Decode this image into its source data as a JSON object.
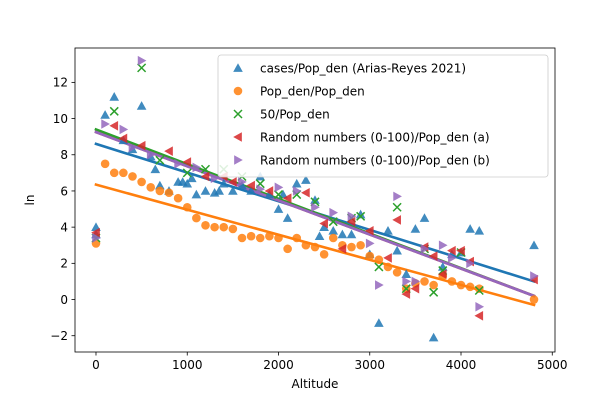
{
  "chart_data": {
    "type": "scatter",
    "title": "",
    "xlabel": "Altitude",
    "ylabel": "ln",
    "xlim": [
      -230,
      5030
    ],
    "ylim": [
      -2.9,
      13.9
    ],
    "xticks": [
      0,
      1000,
      2000,
      3000,
      4000,
      5000
    ],
    "yticks": [
      -2,
      0,
      2,
      4,
      6,
      8,
      10,
      12
    ],
    "grid": false,
    "legend_position": "top-right",
    "series": [
      {
        "name": "cases/Pop_den (Arias-Reyes 2021)",
        "marker": "triangle-up",
        "color": "#1f77b4",
        "fit": [
          [
            0,
            8.6
          ],
          [
            4800,
            1.0
          ]
        ],
        "points": [
          [
            0,
            4.0
          ],
          [
            0,
            3.6
          ],
          [
            100,
            10.2
          ],
          [
            200,
            11.2
          ],
          [
            300,
            8.8
          ],
          [
            400,
            8.3
          ],
          [
            500,
            10.7
          ],
          [
            600,
            7.9
          ],
          [
            650,
            7.2
          ],
          [
            700,
            6.3
          ],
          [
            800,
            6.0
          ],
          [
            900,
            6.5
          ],
          [
            950,
            6.5
          ],
          [
            1000,
            6.4
          ],
          [
            1050,
            6.7
          ],
          [
            1100,
            5.8
          ],
          [
            1200,
            6.0
          ],
          [
            1300,
            5.9
          ],
          [
            1350,
            6.0
          ],
          [
            1400,
            6.4
          ],
          [
            1500,
            6.0
          ],
          [
            1600,
            6.3
          ],
          [
            1700,
            6.0
          ],
          [
            1800,
            6.8
          ],
          [
            1900,
            5.8
          ],
          [
            2000,
            5.0
          ],
          [
            2050,
            5.8
          ],
          [
            2100,
            4.5
          ],
          [
            2200,
            6.4
          ],
          [
            2300,
            6.6
          ],
          [
            2400,
            5.5
          ],
          [
            2450,
            3.5
          ],
          [
            2500,
            4.0
          ],
          [
            2600,
            3.8
          ],
          [
            2700,
            3.6
          ],
          [
            2800,
            3.6
          ],
          [
            2900,
            4.7
          ],
          [
            3000,
            2.5
          ],
          [
            3100,
            -1.3
          ],
          [
            3200,
            3.8
          ],
          [
            3300,
            2.7
          ],
          [
            3400,
            1.4
          ],
          [
            3500,
            3.9
          ],
          [
            3600,
            4.5
          ],
          [
            3700,
            -2.1
          ],
          [
            3800,
            1.8
          ],
          [
            3900,
            2.5
          ],
          [
            4000,
            2.6
          ],
          [
            4100,
            3.9
          ],
          [
            4200,
            3.8
          ],
          [
            4800,
            3.0
          ]
        ]
      },
      {
        "name": "Pop_den/Pop_den",
        "marker": "circle",
        "color": "#ff7f0e",
        "fit": [
          [
            0,
            6.35
          ],
          [
            4800,
            -0.3
          ]
        ],
        "points": [
          [
            0,
            3.1
          ],
          [
            100,
            7.5
          ],
          [
            200,
            7.0
          ],
          [
            300,
            7.0
          ],
          [
            400,
            6.8
          ],
          [
            500,
            6.5
          ],
          [
            600,
            6.2
          ],
          [
            700,
            6.0
          ],
          [
            800,
            5.9
          ],
          [
            900,
            5.6
          ],
          [
            1000,
            5.1
          ],
          [
            1100,
            4.5
          ],
          [
            1200,
            4.1
          ],
          [
            1300,
            4.0
          ],
          [
            1400,
            4.0
          ],
          [
            1500,
            3.9
          ],
          [
            1600,
            3.4
          ],
          [
            1700,
            3.5
          ],
          [
            1800,
            3.4
          ],
          [
            1900,
            3.5
          ],
          [
            2000,
            3.4
          ],
          [
            2100,
            2.8
          ],
          [
            2200,
            3.4
          ],
          [
            2300,
            3.0
          ],
          [
            2400,
            2.9
          ],
          [
            2500,
            2.5
          ],
          [
            2600,
            3.4
          ],
          [
            2700,
            3.0
          ],
          [
            2800,
            2.9
          ],
          [
            2900,
            3.0
          ],
          [
            3000,
            2.4
          ],
          [
            3100,
            2.2
          ],
          [
            3200,
            1.8
          ],
          [
            3300,
            1.5
          ],
          [
            3400,
            0.6
          ],
          [
            3500,
            0.9
          ],
          [
            3600,
            1.0
          ],
          [
            3700,
            0.8
          ],
          [
            3800,
            1.3
          ],
          [
            3900,
            1.0
          ],
          [
            4000,
            0.8
          ],
          [
            4100,
            0.7
          ],
          [
            4200,
            0.6
          ],
          [
            4800,
            0.0
          ]
        ]
      },
      {
        "name": "50/Pop_den",
        "marker": "x",
        "color": "#2ca02c",
        "fit": [
          [
            0,
            9.4
          ],
          [
            4800,
            0.2
          ]
        ],
        "points": [
          [
            0,
            3.4
          ],
          [
            200,
            10.4
          ],
          [
            500,
            12.8
          ],
          [
            700,
            7.7
          ],
          [
            1000,
            7.0
          ],
          [
            1200,
            7.2
          ],
          [
            1400,
            7.2
          ],
          [
            1600,
            6.8
          ],
          [
            1800,
            6.4
          ],
          [
            2000,
            5.8
          ],
          [
            2200,
            5.8
          ],
          [
            2400,
            5.4
          ],
          [
            2600,
            4.3
          ],
          [
            2800,
            4.5
          ],
          [
            2900,
            4.6
          ],
          [
            3100,
            1.8
          ],
          [
            3300,
            5.1
          ],
          [
            3400,
            0.6
          ],
          [
            3600,
            2.8
          ],
          [
            3700,
            0.4
          ],
          [
            3800,
            1.6
          ],
          [
            4000,
            2.6
          ],
          [
            4200,
            0.5
          ]
        ]
      },
      {
        "name": "Random numbers (0-100)/Pop_den (a)",
        "marker": "triangle-left",
        "color": "#d62728",
        "fit": [
          [
            0,
            9.25
          ],
          [
            4800,
            0.2
          ]
        ],
        "points": [
          [
            0,
            3.7
          ],
          [
            200,
            9.6
          ],
          [
            300,
            8.9
          ],
          [
            500,
            8.5
          ],
          [
            800,
            8.2
          ],
          [
            1000,
            7.6
          ],
          [
            1200,
            6.8
          ],
          [
            1400,
            6.8
          ],
          [
            1500,
            6.5
          ],
          [
            1700,
            6.3
          ],
          [
            1900,
            6.0
          ],
          [
            2100,
            5.6
          ],
          [
            2300,
            5.9
          ],
          [
            2500,
            4.2
          ],
          [
            2700,
            2.8
          ],
          [
            2800,
            4.3
          ],
          [
            3000,
            3.8
          ],
          [
            3200,
            2.3
          ],
          [
            3300,
            4.4
          ],
          [
            3400,
            0.3
          ],
          [
            3500,
            0.6
          ],
          [
            3600,
            2.9
          ],
          [
            3700,
            2.4
          ],
          [
            3800,
            1.4
          ],
          [
            3900,
            2.7
          ],
          [
            4000,
            2.7
          ],
          [
            4100,
            2.1
          ],
          [
            4200,
            -0.9
          ],
          [
            4800,
            1.1
          ]
        ]
      },
      {
        "name": "Random numbers (0-100)/Pop_den (b)",
        "marker": "triangle-right",
        "color": "#9467bd",
        "fit": [
          [
            0,
            9.25
          ],
          [
            4800,
            0.2
          ]
        ],
        "points": [
          [
            0,
            3.4
          ],
          [
            100,
            9.7
          ],
          [
            300,
            9.4
          ],
          [
            400,
            8.4
          ],
          [
            500,
            13.2
          ],
          [
            600,
            8.0
          ],
          [
            900,
            7.5
          ],
          [
            1100,
            7.3
          ],
          [
            1300,
            6.7
          ],
          [
            1600,
            6.5
          ],
          [
            1800,
            6.1
          ],
          [
            2000,
            6.2
          ],
          [
            2200,
            6.0
          ],
          [
            2400,
            5.1
          ],
          [
            2600,
            4.8
          ],
          [
            2800,
            4.6
          ],
          [
            3000,
            3.1
          ],
          [
            3100,
            0.8
          ],
          [
            3300,
            5.7
          ],
          [
            3400,
            1.0
          ],
          [
            3500,
            1.0
          ],
          [
            3600,
            2.8
          ],
          [
            3800,
            3.0
          ],
          [
            3900,
            2.3
          ],
          [
            4100,
            2.0
          ],
          [
            4200,
            -0.4
          ],
          [
            4800,
            1.3
          ]
        ]
      }
    ]
  }
}
